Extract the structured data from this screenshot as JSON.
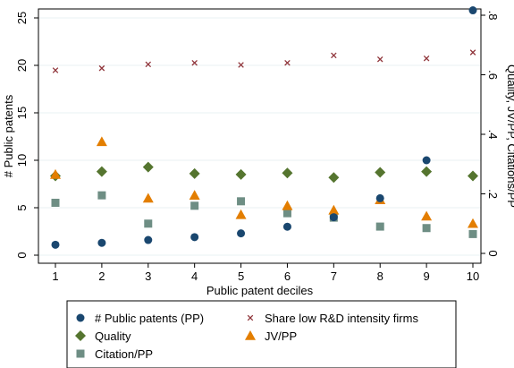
{
  "chart_data": {
    "type": "scatter",
    "x": [
      1,
      2,
      3,
      4,
      5,
      6,
      7,
      8,
      9,
      10
    ],
    "xlabel": "Public patent deciles",
    "ylabel_left": "# Public patents",
    "ylabel_right": "Quality, JV/PP, Citations/PP",
    "xlim": [
      1,
      10
    ],
    "ylim_left": [
      0,
      25
    ],
    "ylim_right": [
      0,
      0.8
    ],
    "x_ticks": [
      "1",
      "2",
      "3",
      "4",
      "5",
      "6",
      "7",
      "8",
      "9",
      "10"
    ],
    "y_left_ticks": [
      "0",
      "5",
      "10",
      "15",
      "20",
      "25"
    ],
    "y_right_ticks": [
      "0",
      ".2",
      ".4",
      ".6",
      ".8"
    ],
    "grid": "horizontal",
    "legend_position": "bottom",
    "series": [
      {
        "name": "# Public patents (PP)",
        "axis": "left",
        "marker": "circle",
        "color": "#1a476f",
        "values": [
          1.1,
          1.3,
          1.6,
          1.9,
          2.3,
          3.0,
          4.0,
          6.0,
          10.0,
          25.8
        ]
      },
      {
        "name": "Share low R&D intensity firms",
        "axis": "right",
        "marker": "x",
        "color": "#90353b",
        "values": [
          0.615,
          0.622,
          0.635,
          0.64,
          0.633,
          0.64,
          0.665,
          0.652,
          0.655,
          0.675
        ]
      },
      {
        "name": "Quality",
        "axis": "right",
        "marker": "diamond",
        "color": "#55752f",
        "values": [
          0.26,
          0.275,
          0.29,
          0.268,
          0.265,
          0.27,
          0.255,
          0.272,
          0.275,
          0.26
        ]
      },
      {
        "name": "JV/PP",
        "axis": "right",
        "marker": "triangle",
        "color": "#e37e00",
        "values": [
          0.265,
          0.375,
          0.185,
          0.195,
          0.13,
          0.16,
          0.145,
          0.18,
          0.125,
          0.1
        ]
      },
      {
        "name": "Citation/PP",
        "axis": "right",
        "marker": "square",
        "color": "#6e8e84",
        "values": [
          0.17,
          0.195,
          0.1,
          0.16,
          0.175,
          0.135,
          0.12,
          0.09,
          0.085,
          0.065
        ]
      }
    ]
  }
}
